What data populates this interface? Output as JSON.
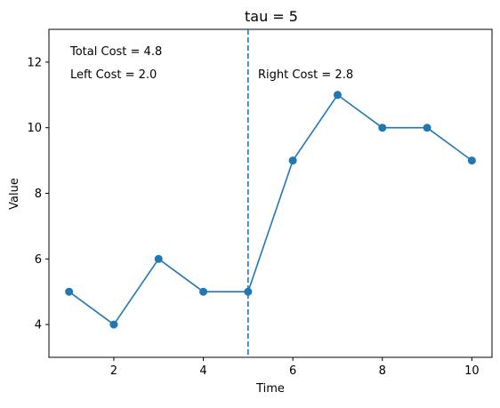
{
  "chart_data": {
    "type": "line",
    "title": "tau = 5",
    "xlabel": "Time",
    "ylabel": "Value",
    "xlim": [
      0.55,
      10.45
    ],
    "ylim": [
      3.0,
      13.0
    ],
    "xticks": [
      2,
      4,
      6,
      8,
      10
    ],
    "yticks": [
      4,
      6,
      8,
      10,
      12
    ],
    "grid": false,
    "series": [
      {
        "x": [
          1,
          2,
          3,
          4,
          5,
          6,
          7,
          8,
          9,
          10
        ],
        "y": [
          5,
          4,
          6,
          5,
          5,
          9,
          11,
          10,
          10,
          9
        ],
        "color": "#1f77b4",
        "marker": "circle"
      }
    ],
    "changepoint": {
      "x": 5,
      "style": "dashed",
      "color": "#1f77b4"
    },
    "annotations": {
      "total_cost": "Total Cost = 4.8",
      "left_cost": "Left Cost = 2.0",
      "right_cost": "Right Cost = 2.8"
    }
  }
}
